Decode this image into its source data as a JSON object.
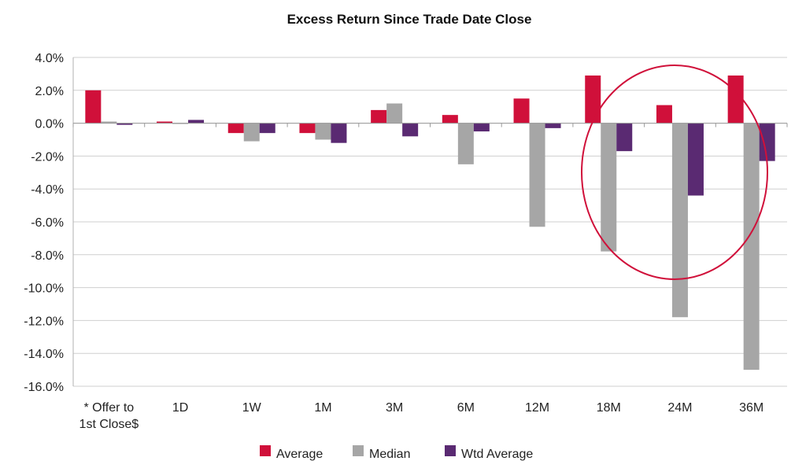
{
  "chart_data": {
    "type": "bar",
    "title": "Excess Return Since Trade Date Close",
    "xlabel": "",
    "ylabel": "",
    "categories": [
      [
        "* Offer to",
        "1st Close$"
      ],
      [
        "1D"
      ],
      [
        "1W"
      ],
      [
        "1M"
      ],
      [
        "3M"
      ],
      [
        "6M"
      ],
      [
        "12M"
      ],
      [
        "18M"
      ],
      [
        "24M"
      ],
      [
        "36M"
      ]
    ],
    "ylim": [
      -16,
      4
    ],
    "y_ticks": [
      "4.0%",
      "2.0%",
      "0.0%",
      "-2.0%",
      "-4.0%",
      "-6.0%",
      "-8.0%",
      "-10.0%",
      "-12.0%",
      "-14.0%",
      "-16.0%"
    ],
    "y_tick_values": [
      4,
      2,
      0,
      -2,
      -4,
      -6,
      -8,
      -10,
      -12,
      -14,
      -16
    ],
    "grid": true,
    "legend_position": "bottom",
    "series": [
      {
        "name": "Average",
        "color": "#D0103A",
        "values": [
          2.0,
          0.1,
          -0.6,
          -0.6,
          0.8,
          0.5,
          1.5,
          2.9,
          1.1,
          2.9
        ]
      },
      {
        "name": "Median",
        "color": "#A6A6A6",
        "values": [
          0.1,
          0.0,
          -1.1,
          -1.0,
          1.2,
          -2.5,
          -6.3,
          -7.8,
          -11.8,
          -15.0
        ]
      },
      {
        "name": "Wtd Average",
        "color": "#5A2A72",
        "values": [
          -0.1,
          0.2,
          -0.6,
          -1.2,
          -0.8,
          -0.5,
          -0.3,
          -1.7,
          -4.4,
          -2.3
        ]
      }
    ],
    "annotation": {
      "type": "circle",
      "color": "#D0103A",
      "highlights": [
        "18M",
        "24M"
      ]
    }
  }
}
